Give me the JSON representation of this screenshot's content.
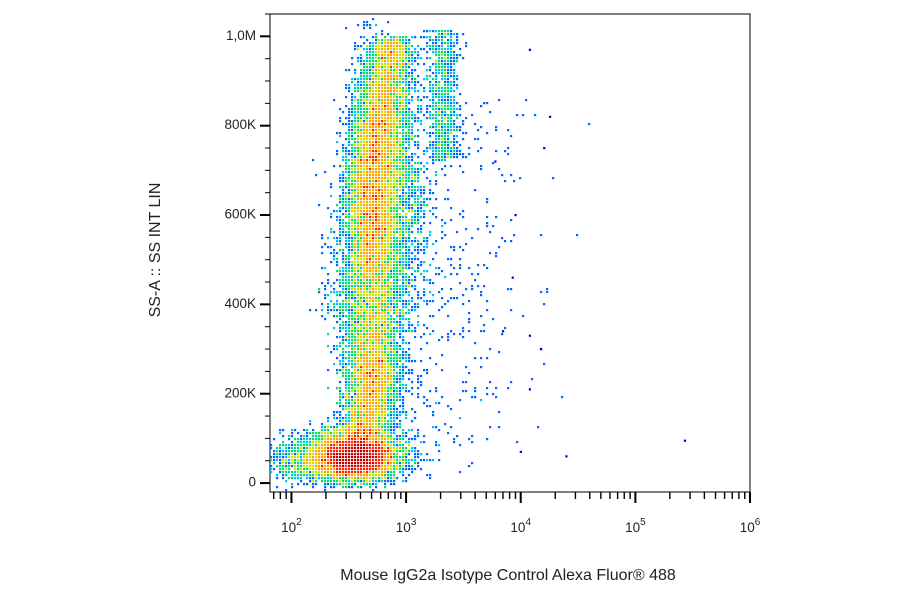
{
  "chart_data": {
    "type": "scatter",
    "subtype": "flow-cytometry density dot plot",
    "title": "",
    "xlabel": "Mouse IgG2a Isotype Control Alexa Fluor® 488",
    "ylabel": "SS-A :: SS INT LIN",
    "x_scale": "log",
    "y_scale": "linear",
    "xlim": [
      65,
      1000000
    ],
    "ylim": [
      -20000,
      1050000
    ],
    "x_ticks": [
      {
        "value": 100,
        "base": "10",
        "exp": "2"
      },
      {
        "value": 1000,
        "base": "10",
        "exp": "3"
      },
      {
        "value": 10000,
        "base": "10",
        "exp": "4"
      },
      {
        "value": 100000,
        "base": "10",
        "exp": "5"
      },
      {
        "value": 1000000,
        "base": "10",
        "exp": "6"
      }
    ],
    "y_ticks": [
      {
        "value": 0,
        "label": "0"
      },
      {
        "value": 200000,
        "label": "200K"
      },
      {
        "value": 400000,
        "label": "400K"
      },
      {
        "value": 600000,
        "label": "600K"
      },
      {
        "value": 800000,
        "label": "800K"
      },
      {
        "value": 1000000,
        "label": "1,0M"
      }
    ],
    "grid": false,
    "legend": "none",
    "colormap": [
      "#0000d0",
      "#0066ff",
      "#00c0ff",
      "#00e060",
      "#d0e000",
      "#ffa000",
      "#ff2000",
      "#c00000"
    ],
    "populations": [
      {
        "label": "debris / low-scatter cluster",
        "x_center": 370,
        "y_center": 80000,
        "density": "highest"
      },
      {
        "label": "main scatter population",
        "x_center": 600,
        "y_center": 620000,
        "density": "high"
      },
      {
        "label": "secondary population",
        "x_center": 3000,
        "y_center": 900000,
        "density": "low"
      }
    ],
    "outliers": [
      {
        "x": 12000,
        "y": 970000
      },
      {
        "x": 18000,
        "y": 820000
      },
      {
        "x": 16000,
        "y": 750000
      },
      {
        "x": 6000,
        "y": 720000
      },
      {
        "x": 9000,
        "y": 600000
      },
      {
        "x": 8500,
        "y": 460000
      },
      {
        "x": 7000,
        "y": 340000
      },
      {
        "x": 12000,
        "y": 330000
      },
      {
        "x": 15000,
        "y": 300000
      },
      {
        "x": 12000,
        "y": 210000
      },
      {
        "x": 10000,
        "y": 70000
      },
      {
        "x": 25000,
        "y": 60000
      },
      {
        "x": 270000,
        "y": 95000
      }
    ]
  }
}
